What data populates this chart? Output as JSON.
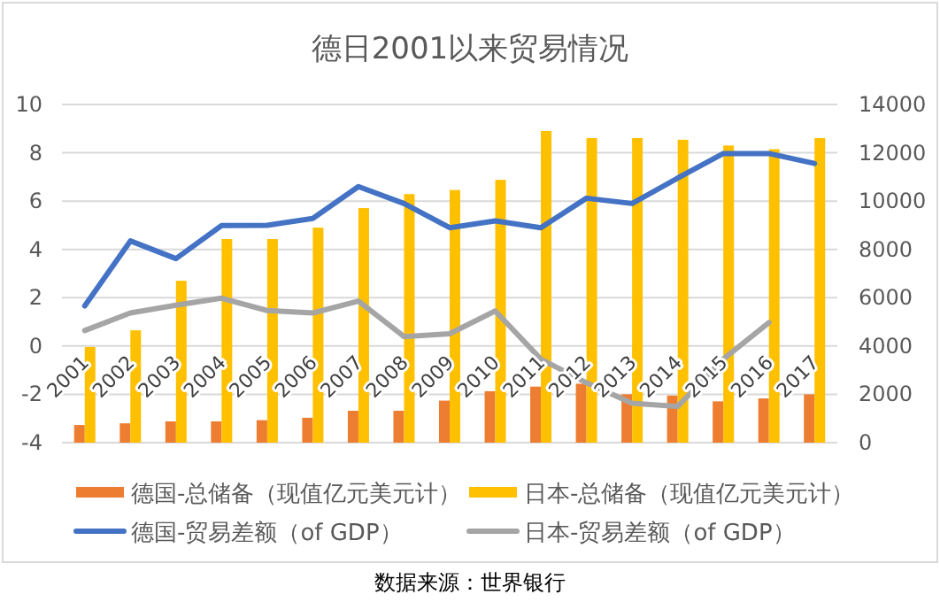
{
  "chart_data": {
    "type": "bar",
    "title": "德日2001以来贸易情况",
    "annotations": [
      "数据来源：世界银行"
    ],
    "categories": [
      "2001",
      "2002",
      "2003",
      "2004",
      "2005",
      "2006",
      "2007",
      "2008",
      "2009",
      "2010",
      "2011",
      "2012",
      "2013",
      "2014",
      "2015",
      "2016",
      "2017"
    ],
    "series": [
      {
        "name": "德国-总储备（现值亿元美元计）",
        "type": "bar",
        "axis": "y2",
        "color": "#ed7d31",
        "values": [
          730,
          800,
          880,
          880,
          930,
          1030,
          1320,
          1320,
          1740,
          2130,
          2320,
          2440,
          2000,
          1950,
          1710,
          1830,
          2000
        ]
      },
      {
        "name": "日本-总储备（现值亿元美元计）",
        "type": "bar",
        "axis": "y2",
        "color": "#ffc000",
        "values": [
          3960,
          4650,
          6700,
          8430,
          8430,
          8900,
          9710,
          10290,
          10460,
          10880,
          12900,
          12610,
          12610,
          12540,
          12300,
          12150,
          12610
        ]
      },
      {
        "name": "德国-贸易差额（of GDP）",
        "type": "line",
        "color": "#4472c4",
        "values": [
          1.66,
          4.35,
          3.62,
          4.99,
          5.0,
          5.28,
          6.6,
          5.9,
          4.9,
          5.18,
          4.9,
          6.12,
          5.9,
          6.95,
          7.97,
          7.97,
          7.56
        ]
      },
      {
        "name": "日本-贸易差额（of GDP）",
        "type": "line",
        "color": "#a5a5a5",
        "values": [
          0.64,
          1.37,
          1.69,
          1.98,
          1.47,
          1.37,
          1.86,
          0.39,
          0.51,
          1.45,
          -0.54,
          -1.52,
          -2.37,
          -2.5,
          -0.54,
          0.97,
          null
        ]
      }
    ],
    "ylim": [
      -4,
      10
    ],
    "yticks": [
      -4,
      -2,
      0,
      2,
      4,
      6,
      8,
      10
    ],
    "y2lim": [
      0,
      14000
    ],
    "y2ticks": [
      0,
      2000,
      4000,
      6000,
      8000,
      10000,
      12000,
      14000
    ],
    "grid": "y",
    "legend": "bottom"
  }
}
